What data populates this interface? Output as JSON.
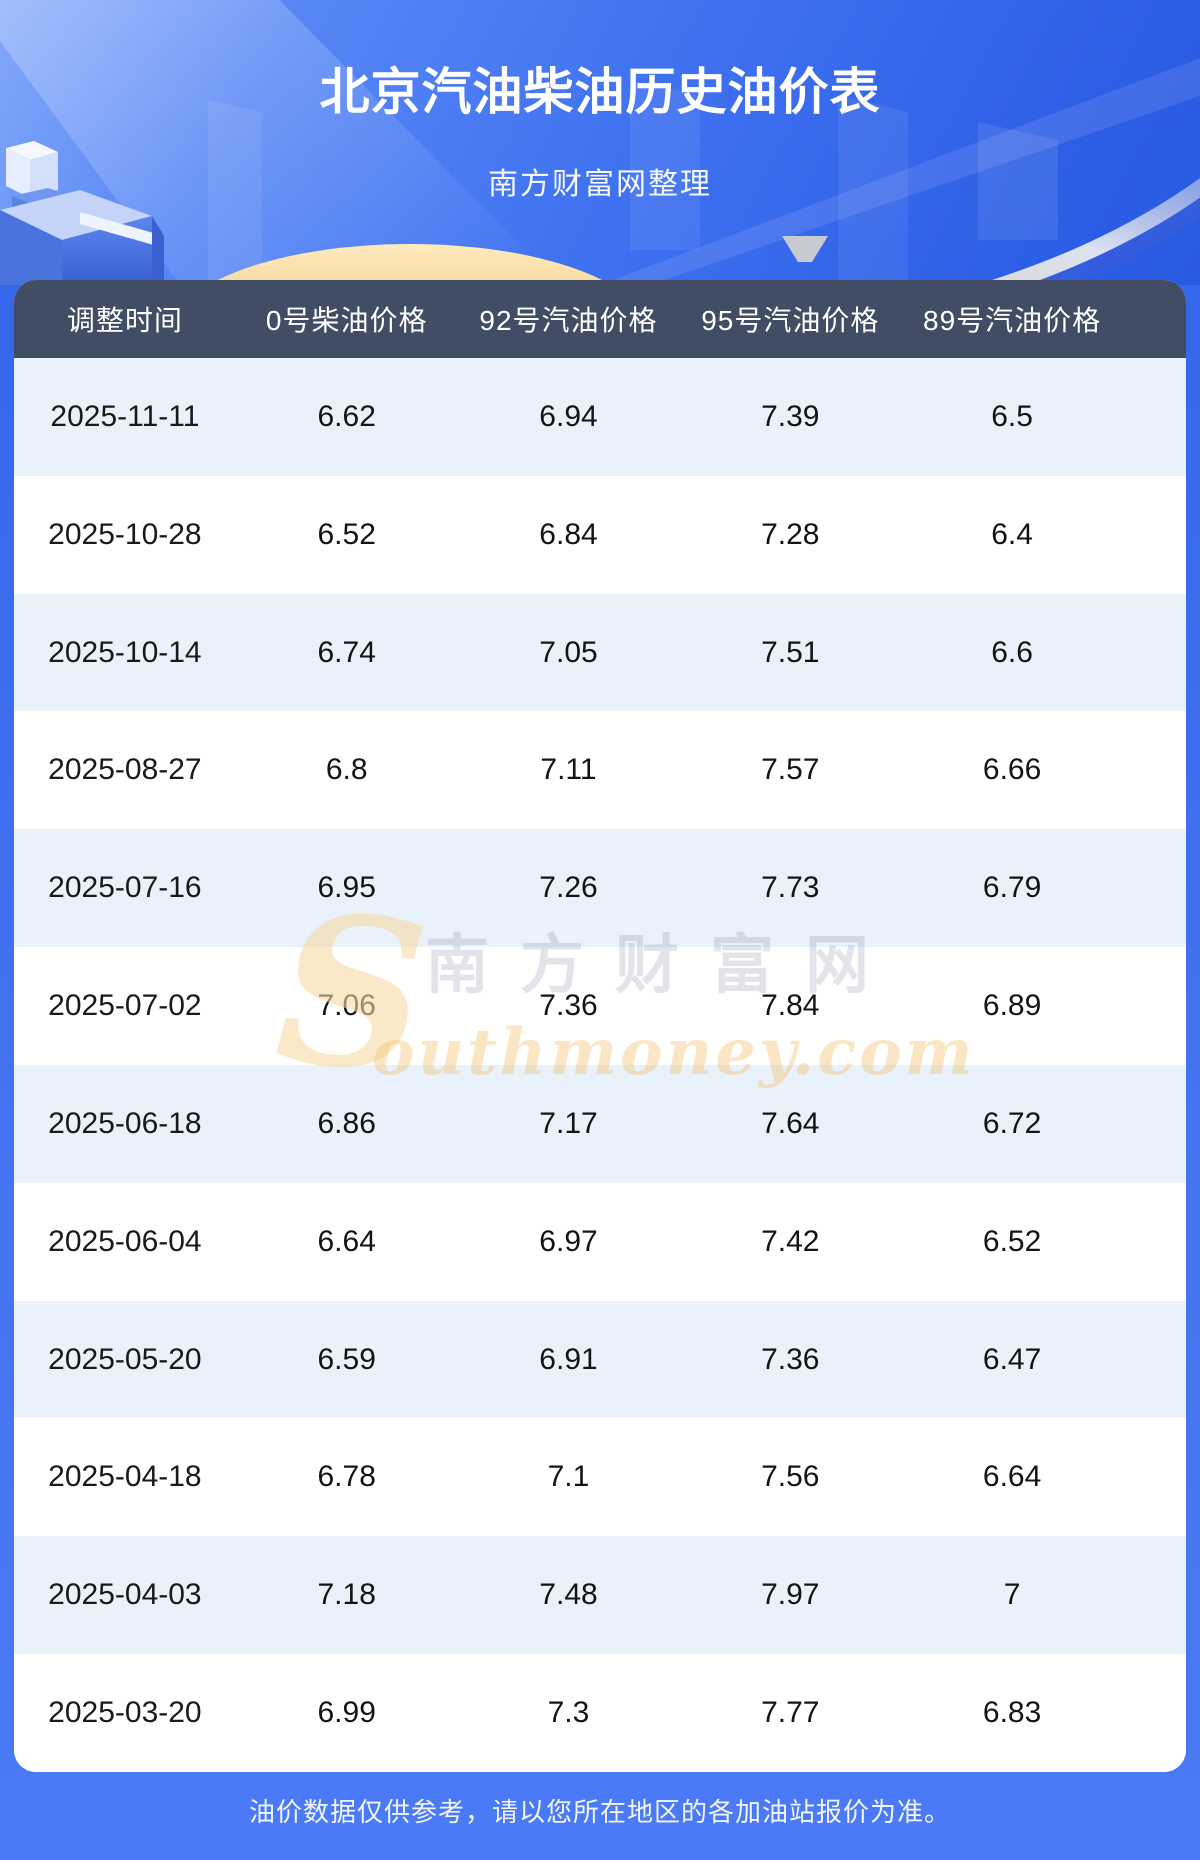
{
  "page": {
    "title": "北京汽油柴油历史油价表",
    "subtitle": "南方财富网整理",
    "footer_disclaimer": "油价数据仅供参考，请以您所在地区的各加油站报价为准。"
  },
  "watermark": {
    "en_initial": "S",
    "cn": "南方财富网",
    "en_rest": "outhmoney.com"
  },
  "chart_data": {
    "type": "table",
    "title": "北京汽油柴油历史油价表",
    "subtitle": "南方财富网整理",
    "columns": [
      "调整时间",
      "0号柴油价格",
      "92号汽油价格",
      "95号汽油价格",
      "89号汽油价格"
    ],
    "rows": [
      [
        "2025-11-11",
        "6.62",
        "6.94",
        "7.39",
        "6.5"
      ],
      [
        "2025-10-28",
        "6.52",
        "6.84",
        "7.28",
        "6.4"
      ],
      [
        "2025-10-14",
        "6.74",
        "7.05",
        "7.51",
        "6.6"
      ],
      [
        "2025-08-27",
        "6.8",
        "7.11",
        "7.57",
        "6.66"
      ],
      [
        "2025-07-16",
        "6.95",
        "7.26",
        "7.73",
        "6.79"
      ],
      [
        "2025-07-02",
        "7.06",
        "7.36",
        "7.84",
        "6.89"
      ],
      [
        "2025-06-18",
        "6.86",
        "7.17",
        "7.64",
        "6.72"
      ],
      [
        "2025-06-04",
        "6.64",
        "6.97",
        "7.42",
        "6.52"
      ],
      [
        "2025-05-20",
        "6.59",
        "6.91",
        "7.36",
        "6.47"
      ],
      [
        "2025-04-18",
        "6.78",
        "7.1",
        "7.56",
        "6.64"
      ],
      [
        "2025-04-03",
        "7.18",
        "7.48",
        "7.97",
        "7"
      ],
      [
        "2025-03-20",
        "6.99",
        "7.3",
        "7.77",
        "6.83"
      ]
    ],
    "layout_hints": {
      "row_striping": [
        "#e9f1fb",
        "#ffffff"
      ],
      "header_bg": "#414c65",
      "grid": "off",
      "value_alignment": "center"
    }
  },
  "colors": {
    "page_blue": "#4573f1",
    "hero_blue_light": "#83a8fa",
    "hero_blue_deep": "#2a5ae2",
    "header_bg": "#414c65",
    "row_alt": "#e9f1fb",
    "gold_arc": "#f5c879",
    "title_text": "#ffffff",
    "cell_text": "#141414"
  }
}
